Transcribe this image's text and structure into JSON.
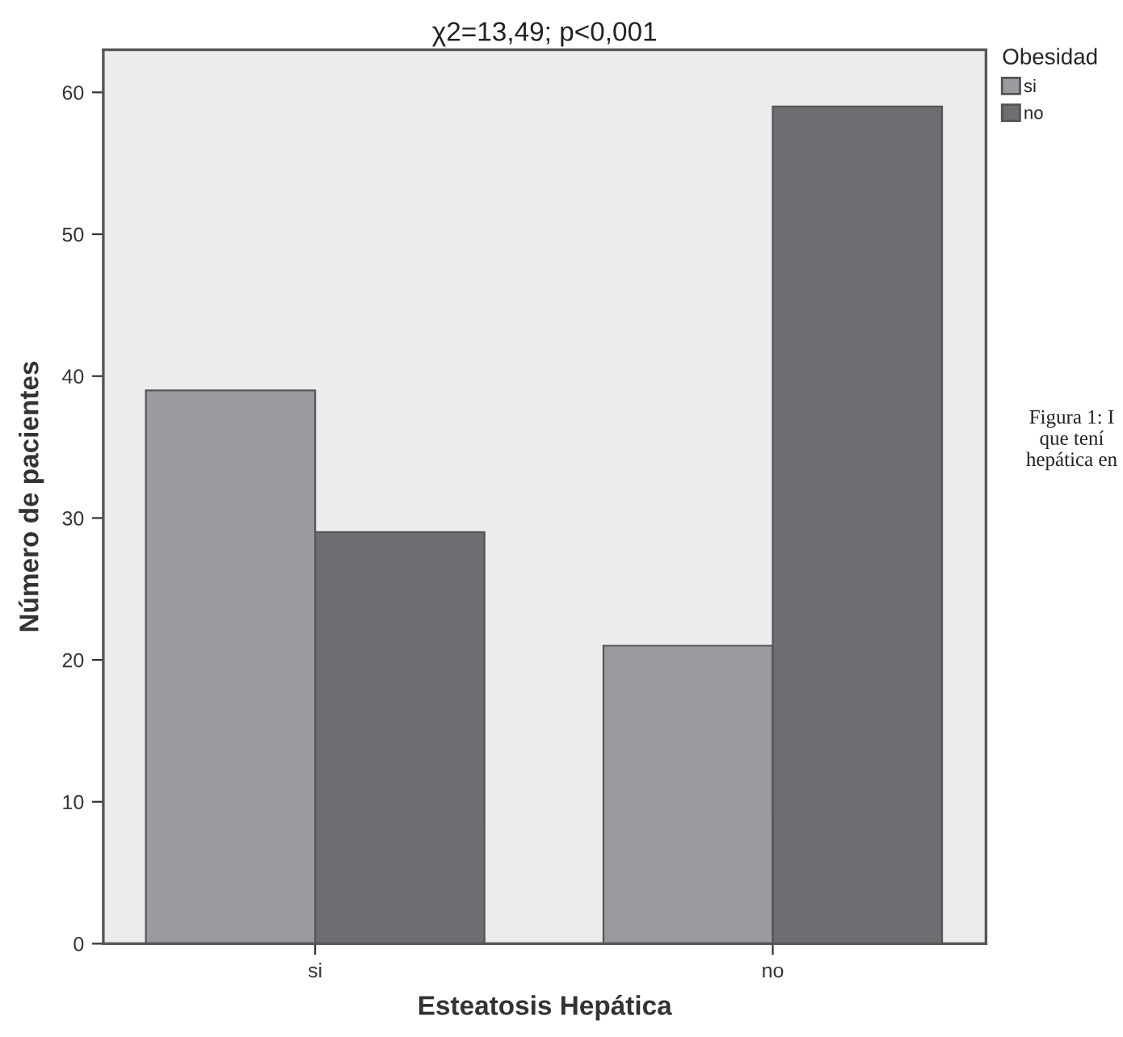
{
  "chart_data": {
    "type": "bar",
    "title": "χ2=13,49; p<0,001",
    "xlabel": "Esteatosis Hepática",
    "ylabel": "Número de pacientes",
    "legend_title": "Obesidad",
    "categories": [
      "si",
      "no"
    ],
    "series": [
      {
        "name": "si",
        "color": "#9a9b9f",
        "values": [
          39,
          21
        ]
      },
      {
        "name": "no",
        "color": "#6d6e72",
        "values": [
          29,
          59
        ]
      }
    ],
    "ylim": [
      0,
      63
    ],
    "yticks": [
      0,
      10,
      20,
      30,
      40,
      50,
      60
    ],
    "grid": false,
    "legend": "top right",
    "annotations": [
      "Figura 1: I\nque tení\nhepática en"
    ]
  }
}
